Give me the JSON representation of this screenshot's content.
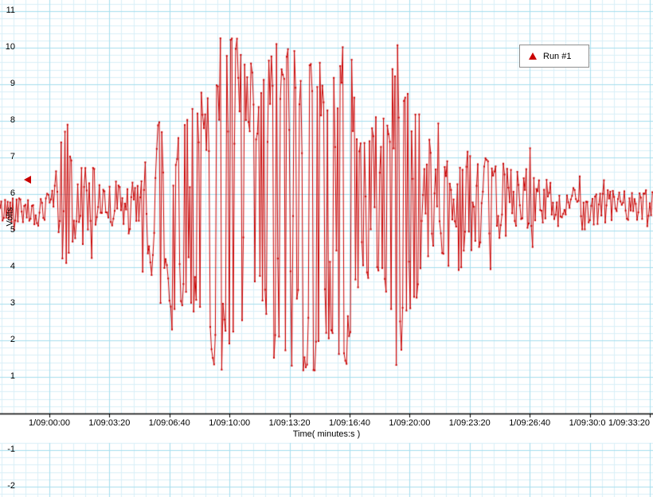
{
  "window": {
    "background": "#ffffff"
  },
  "indicator": {
    "value": 6.4,
    "color": "#c90000"
  },
  "colors": {
    "trace": "#c90000",
    "grid_minor": "#d9eff8",
    "grid_major": "#a5deee",
    "axis": "#000000",
    "legend_border": "#8f8f8f"
  },
  "chart_data": {
    "type": "line",
    "title": "",
    "series": [
      {
        "name": "Run #1",
        "color": "#c90000",
        "marker": "dot",
        "legend_symbol": "triangle-up"
      }
    ],
    "xlabel": "Time( minutes:s )",
    "ylabel": "Volts",
    "x_tick_labels": [
      "1/09:00:00",
      "1/09:03:20",
      "1/09:06:40",
      "1/09:10:00",
      "1/09:13:20",
      "1/09:16:40",
      "1/09:20:00",
      "1/09:23:20",
      "1/09:26:40",
      "1/09:30:00",
      "1/09:33:20"
    ],
    "x_range_seconds": [
      0,
      2000
    ],
    "y_ticks": [
      11,
      10,
      9,
      8,
      7,
      6,
      5,
      4,
      3,
      2,
      1,
      -1,
      -2
    ],
    "y_visible_range": [
      0,
      11.3
    ],
    "baseline_value": 5.65,
    "clip_range": [
      1.18,
      10.35
    ],
    "grid": true,
    "legend_position": "top-right",
    "noise_seed": 42,
    "envelope_description": "piecewise-linear noise envelope: [seconds since 1/09:00:00, center value (V), half-amplitude (V)]",
    "envelope_points": [
      [
        -180,
        5.65,
        0.35
      ],
      [
        0,
        5.65,
        0.4
      ],
      [
        30,
        5.8,
        1.1
      ],
      [
        50,
        5.8,
        2.3
      ],
      [
        90,
        5.75,
        1.3
      ],
      [
        150,
        5.7,
        0.9
      ],
      [
        230,
        5.7,
        0.65
      ],
      [
        300,
        5.7,
        0.8
      ],
      [
        330,
        5.7,
        1.6
      ],
      [
        370,
        5.65,
        3.0
      ],
      [
        410,
        5.65,
        3.6
      ],
      [
        450,
        5.7,
        2.4
      ],
      [
        490,
        5.7,
        3.3
      ],
      [
        520,
        5.7,
        2.8
      ],
      [
        545,
        5.7,
        4.6
      ],
      [
        660,
        5.7,
        4.6
      ],
      [
        690,
        5.7,
        2.6
      ],
      [
        730,
        5.7,
        4.6
      ],
      [
        900,
        5.7,
        4.6
      ],
      [
        915,
        5.7,
        3.0
      ],
      [
        930,
        5.7,
        4.5
      ],
      [
        1000,
        5.7,
        4.5
      ],
      [
        1030,
        5.7,
        2.2
      ],
      [
        1100,
        5.7,
        2.4
      ],
      [
        1130,
        5.7,
        3.0
      ],
      [
        1155,
        5.7,
        4.6
      ],
      [
        1195,
        5.7,
        3.4
      ],
      [
        1255,
        5.75,
        1.9
      ],
      [
        1300,
        5.85,
        1.3
      ],
      [
        1345,
        5.8,
        1.9
      ],
      [
        1395,
        5.8,
        1.5
      ],
      [
        1450,
        5.8,
        1.2
      ],
      [
        1530,
        5.8,
        1.0
      ],
      [
        1620,
        5.76,
        0.8
      ],
      [
        1720,
        5.72,
        0.6
      ],
      [
        1820,
        5.7,
        0.5
      ],
      [
        1920,
        5.68,
        0.42
      ],
      [
        2020,
        5.66,
        0.38
      ],
      [
        2110,
        5.65,
        0.33
      ]
    ]
  }
}
